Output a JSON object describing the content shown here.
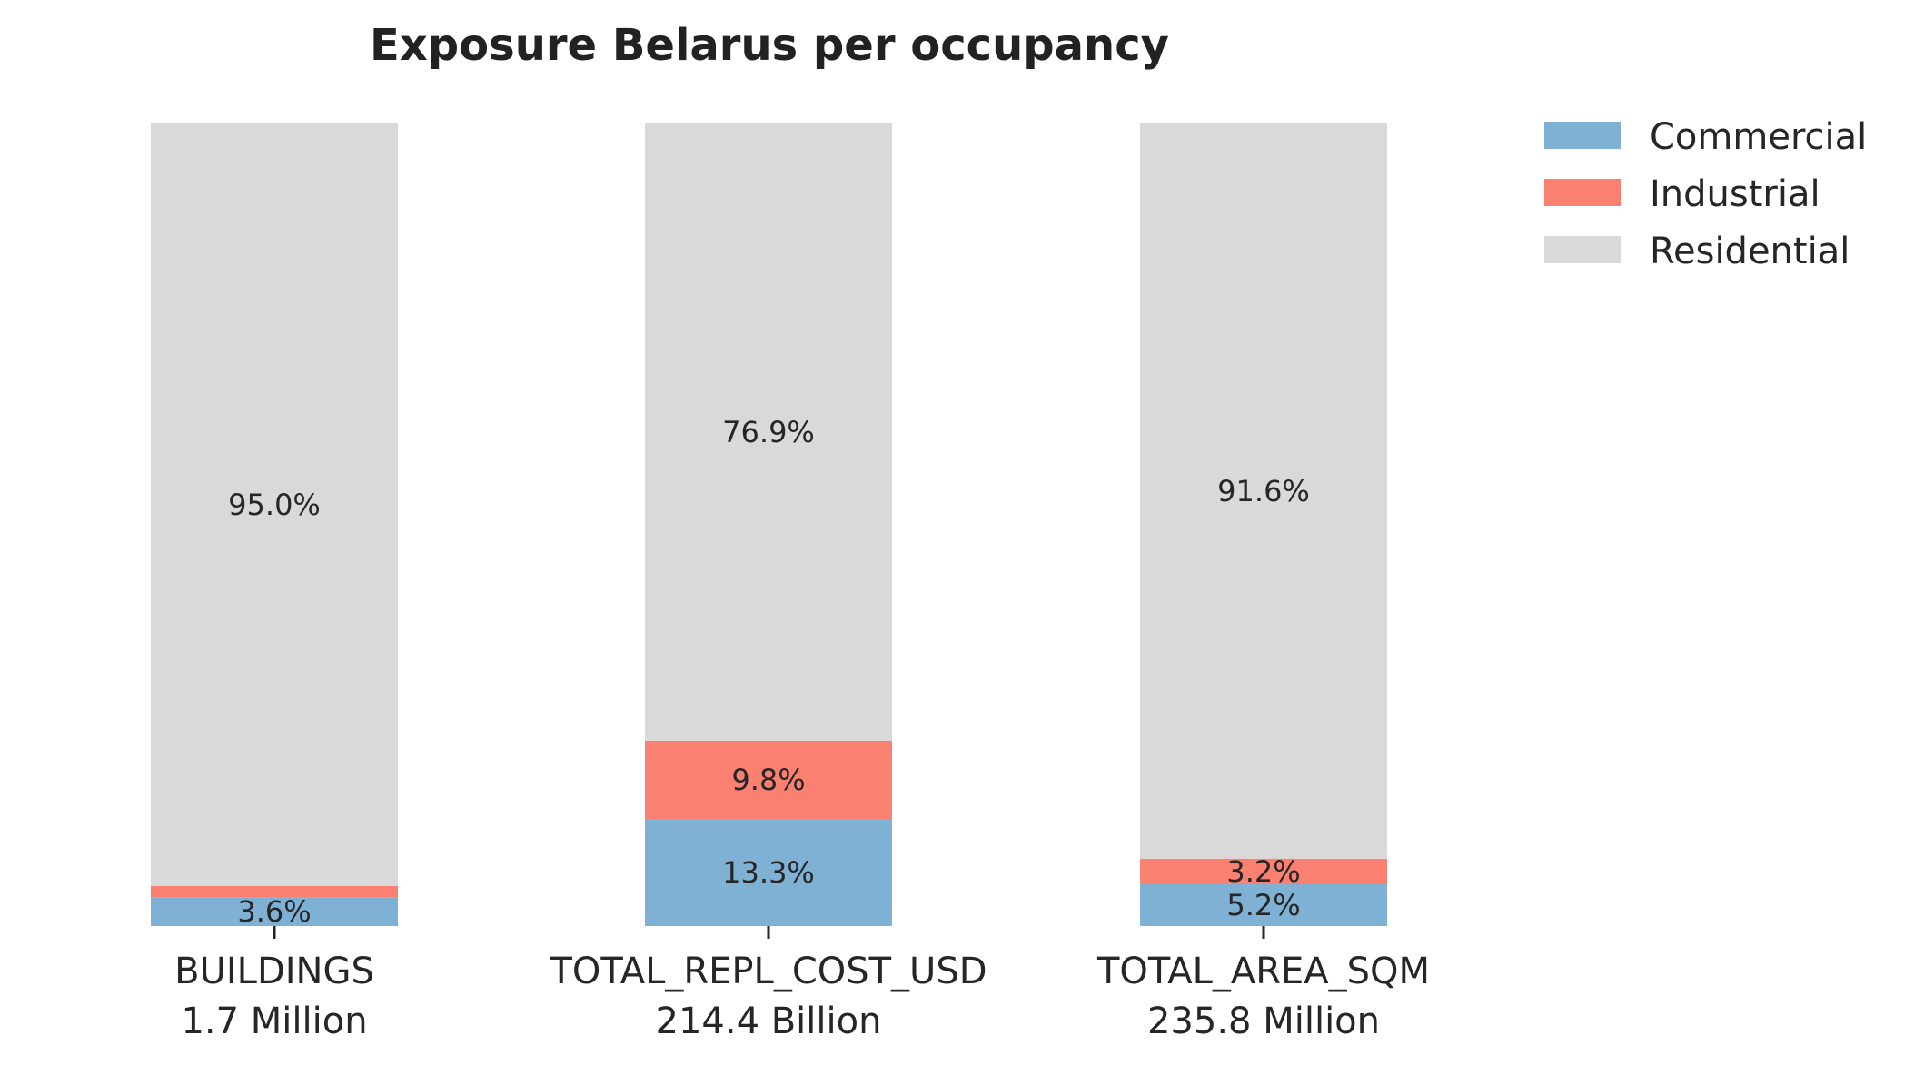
{
  "chart_data": {
    "type": "bar",
    "stacked": true,
    "normalized": true,
    "title": "Exposure Belarus per occupancy",
    "categories": [
      "BUILDINGS",
      "TOTAL_REPL_COST_USD",
      "TOTAL_AREA_SQM"
    ],
    "category_totals": [
      "1.7 Million",
      "214.4 Billion",
      "235.8 Million"
    ],
    "series": [
      {
        "name": "Commercial",
        "color": "#7fb1d4",
        "values": [
          3.6,
          13.3,
          5.2
        ],
        "labels": [
          "3.6%",
          "13.3%",
          "5.2%"
        ]
      },
      {
        "name": "Industrial",
        "color": "#fa8072",
        "values": [
          1.4,
          9.8,
          3.2
        ],
        "labels": [
          "",
          "9.8%",
          "3.2%"
        ]
      },
      {
        "name": "Residential",
        "color": "#d9d9d9",
        "values": [
          95.0,
          76.9,
          91.6
        ],
        "labels": [
          "95.0%",
          "76.9%",
          "91.6%"
        ]
      }
    ],
    "ylim": [
      0,
      100
    ],
    "legend_position": "top-right",
    "grid": false
  }
}
